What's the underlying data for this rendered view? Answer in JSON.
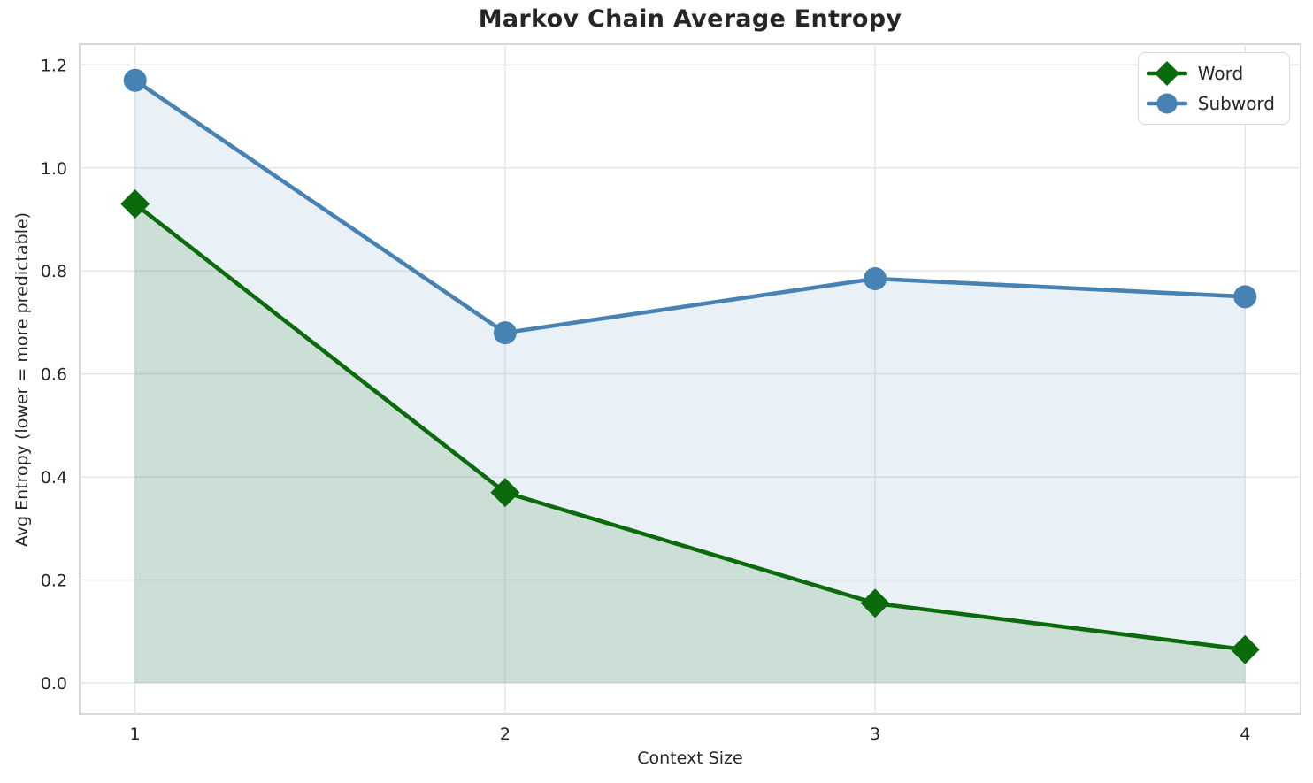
{
  "chart_data": {
    "type": "line",
    "title": "Markov Chain Average Entropy",
    "xlabel": "Context Size",
    "ylabel": "Avg Entropy (lower = more predictable)",
    "x": [
      1,
      2,
      3,
      4
    ],
    "series": [
      {
        "name": "Word",
        "values": [
          0.93,
          0.37,
          0.155,
          0.065
        ],
        "color": "#0b6a0b",
        "marker": "diamond",
        "fill_opacity": 0.13
      },
      {
        "name": "Subword",
        "values": [
          1.17,
          0.68,
          0.785,
          0.75
        ],
        "color": "#4682b4",
        "marker": "circle",
        "fill_opacity": 0.12
      }
    ],
    "xticks": [
      1,
      2,
      3,
      4
    ],
    "yticks": [
      0.0,
      0.2,
      0.4,
      0.6,
      0.8,
      1.0,
      1.2
    ],
    "xlim": [
      0.85,
      4.15
    ],
    "ylim": [
      -0.06,
      1.24
    ],
    "grid": true,
    "area_fill_baseline": 0,
    "legend": {
      "position": "upper right",
      "entries": [
        "Word",
        "Subword"
      ]
    },
    "colors": {
      "grid": "#e5e5e5",
      "spine": "#cccccc",
      "text": "#262626",
      "background": "#ffffff"
    }
  }
}
